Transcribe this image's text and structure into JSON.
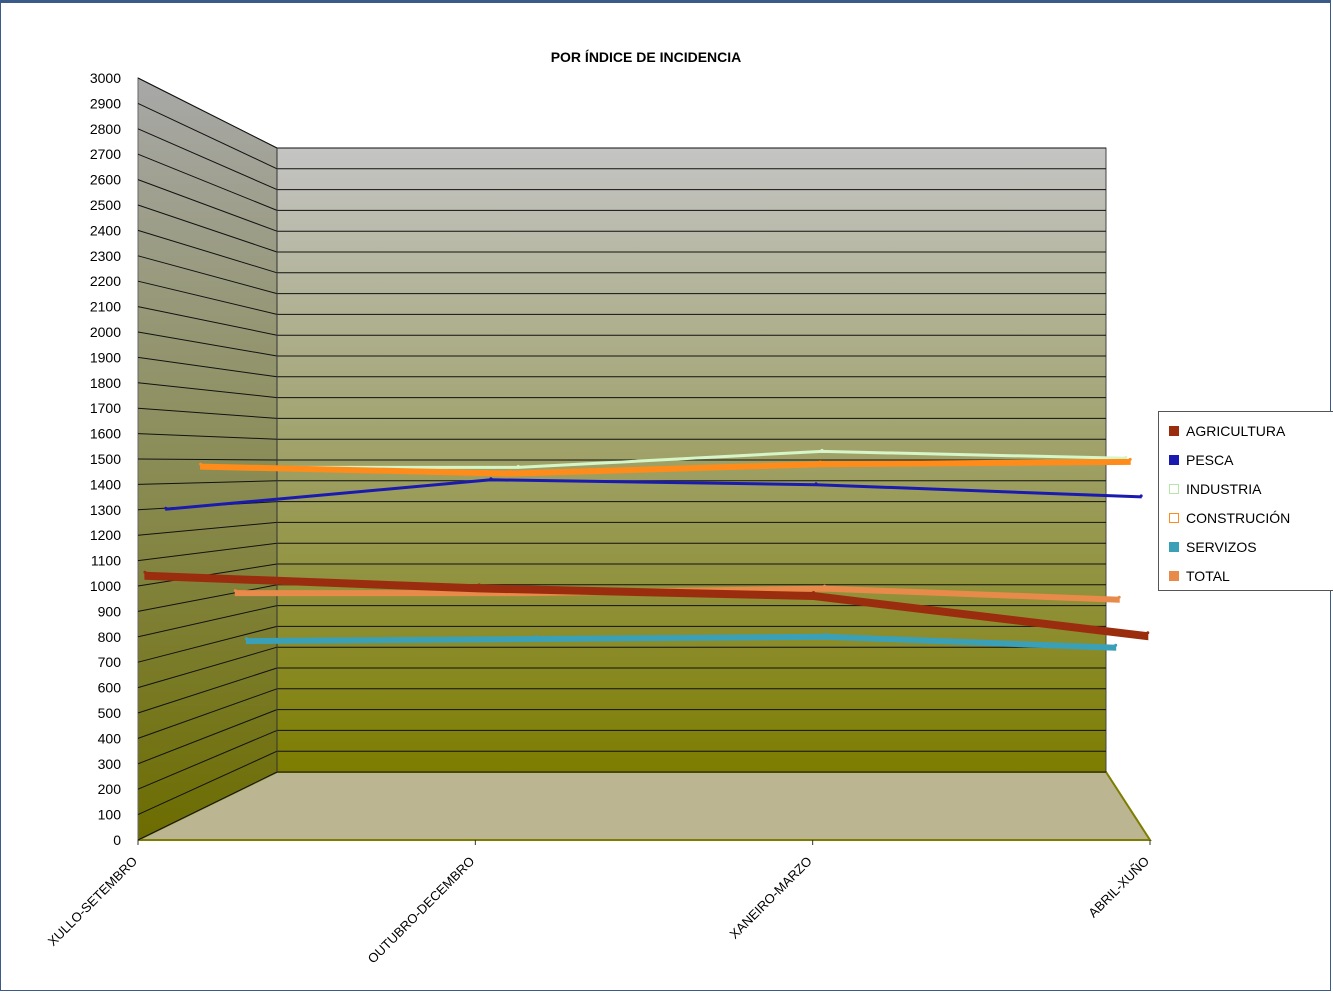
{
  "chart_data": {
    "type": "line",
    "title": "POR ÍNDICE DE INCIDENCIA",
    "categories": [
      "XULLO-SETEMBRO",
      "OUTUBRO-DECEMBRO",
      "XANEIRO-MARZO",
      "ABRIL-XUÑO"
    ],
    "ylim": [
      0,
      3000
    ],
    "ytick_step": 100,
    "grid": true,
    "legend_position": "right",
    "three_d": true,
    "series": [
      {
        "name": "AGRICULTURA",
        "values": [
          1050,
          1000,
          970,
          810
        ],
        "color": "#9b2d0f"
      },
      {
        "name": "PESCA",
        "values": [
          1300,
          1420,
          1400,
          1350
        ],
        "color": "#1a1ab0"
      },
      {
        "name": "INDUSTRIA",
        "values": [
          1470,
          1470,
          1540,
          1510
        ],
        "color": "#d6f5c8"
      },
      {
        "name": "CONSTRUCIÓN",
        "values": [
          1480,
          1450,
          1490,
          1500
        ],
        "color": "#ff8c1a"
      },
      {
        "name": "SERVIZOS",
        "values": [
          680,
          690,
          700,
          650
        ],
        "color": "#3aa0b8"
      },
      {
        "name": "TOTAL",
        "values": [
          910,
          910,
          930,
          880
        ],
        "color": "#e88a4a"
      }
    ]
  }
}
